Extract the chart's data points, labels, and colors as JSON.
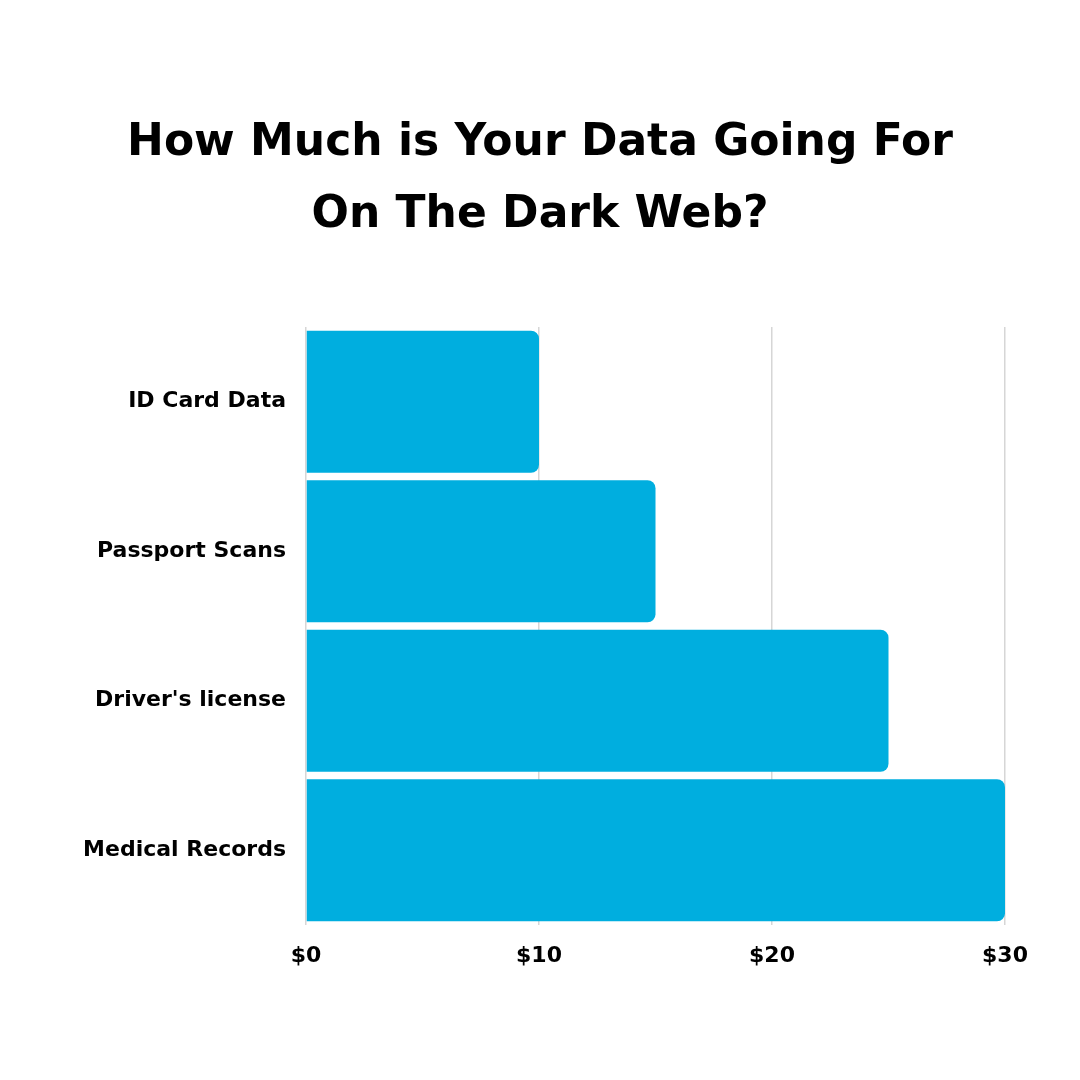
{
  "chart_data": {
    "type": "bar",
    "title": "How Much is Your Data Going For On The Dark Web?",
    "orientation": "horizontal",
    "categories": [
      "ID Card Data",
      "Passport Scans",
      "Driver's license",
      "Medical Records"
    ],
    "values": [
      10,
      15,
      25,
      30
    ],
    "color": "#00aedf",
    "xlim": [
      0,
      30
    ],
    "xticks": [
      {
        "value": 0,
        "label": "$0"
      },
      {
        "value": 10,
        "label": "$10"
      },
      {
        "value": 20,
        "label": "$20"
      },
      {
        "value": 30,
        "label": "$30"
      }
    ],
    "grid": "x"
  }
}
